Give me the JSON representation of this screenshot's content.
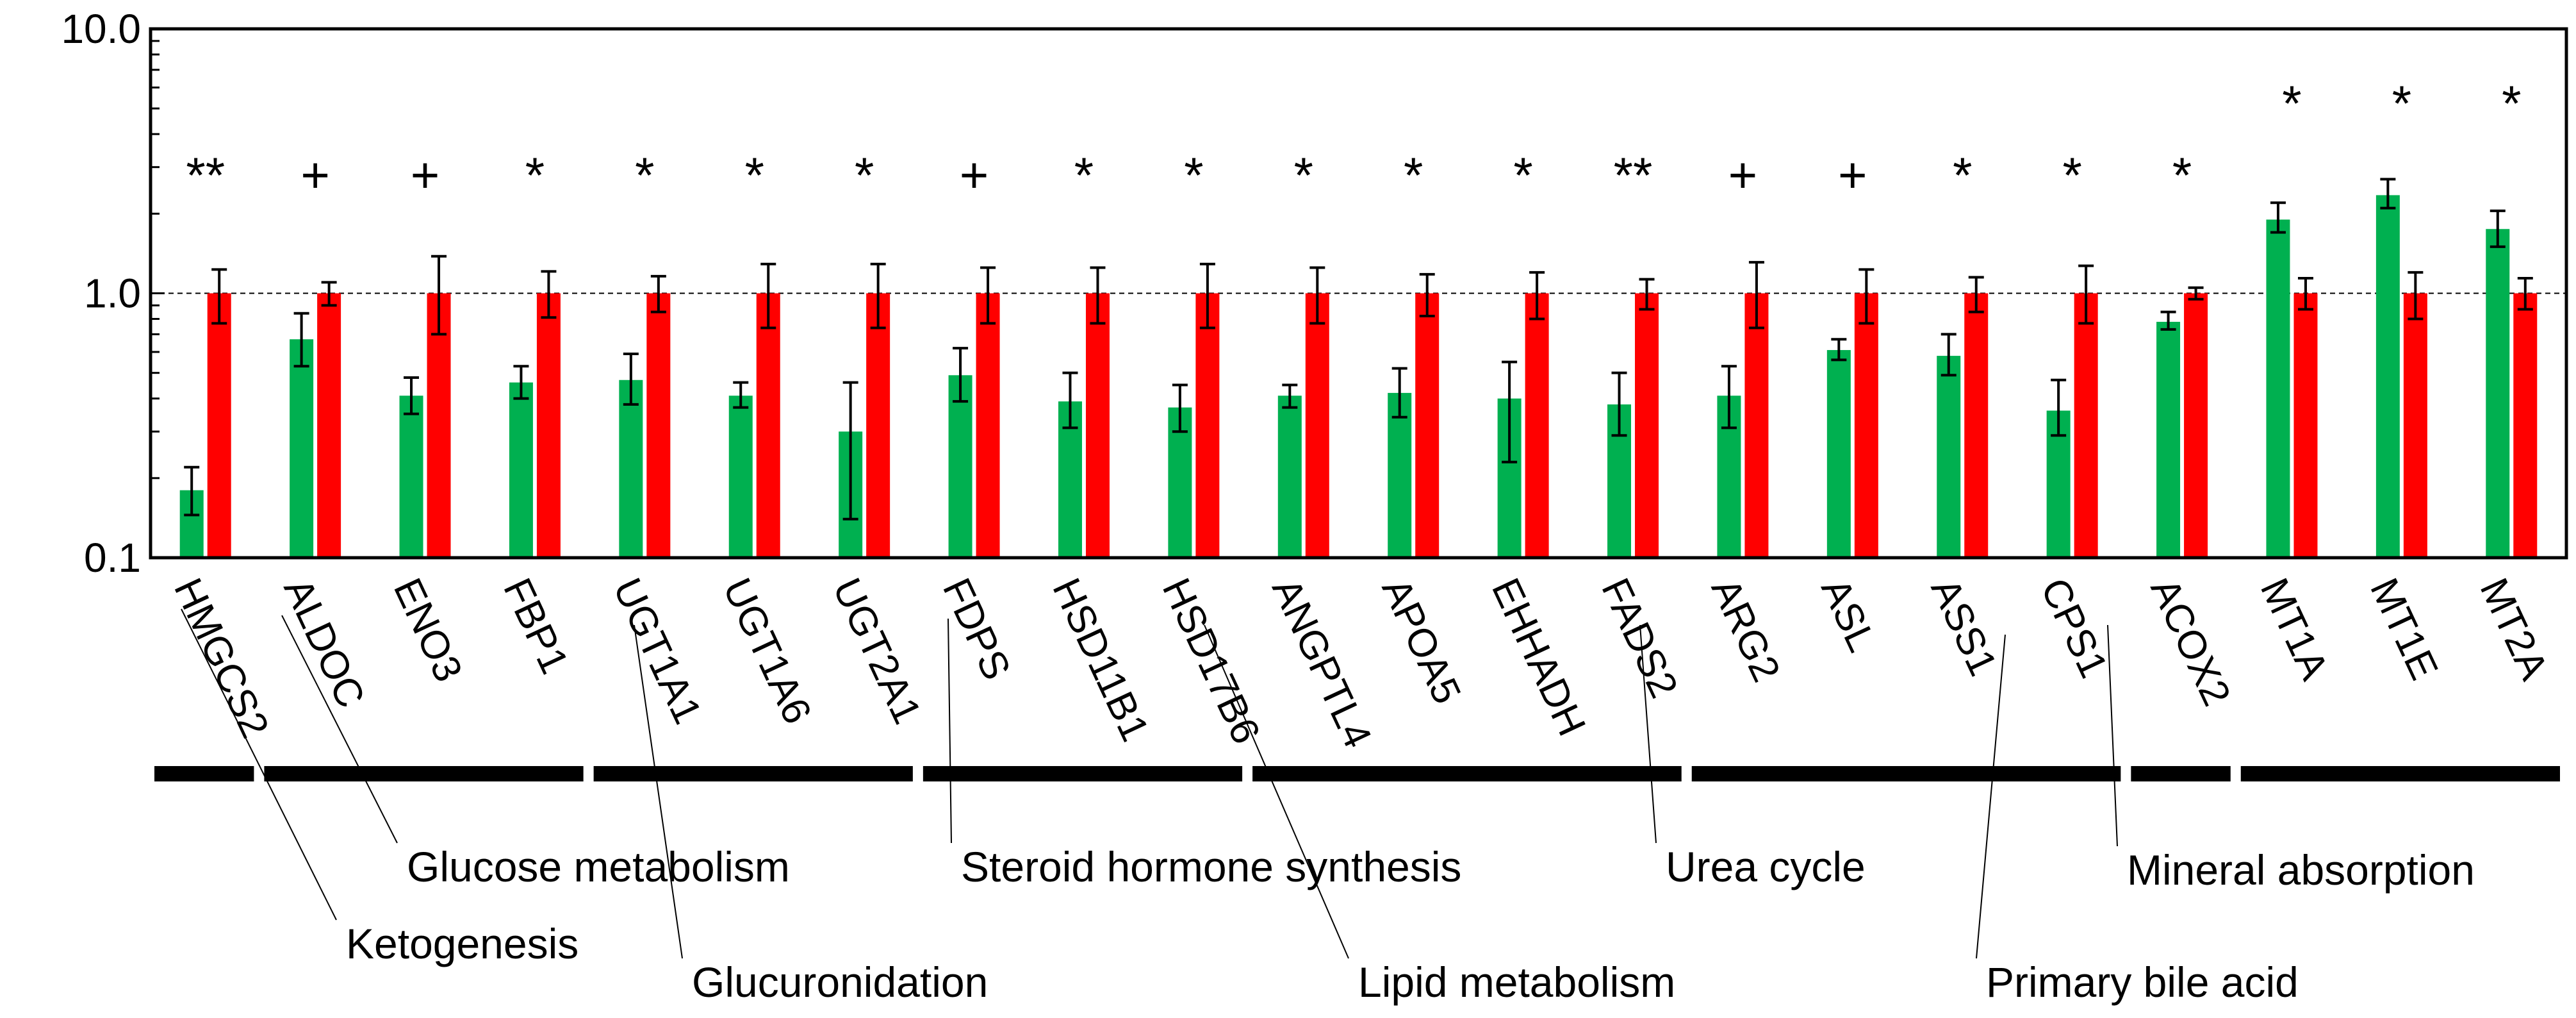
{
  "chart_data": {
    "type": "bar",
    "scale": "log",
    "ylim": [
      0.1,
      10.0
    ],
    "y_ticks": [
      {
        "value": 10.0,
        "label": "10.0"
      },
      {
        "value": 1.0,
        "label": "1.0"
      },
      {
        "value": 0.1,
        "label": "0.1"
      }
    ],
    "reference_line": 1.0,
    "categories": [
      "HMGCS2",
      "ALDOC",
      "ENO3",
      "FBP1",
      "UGT1A1",
      "UGT1A6",
      "UGT2A1",
      "FDPS",
      "HSD11B1",
      "HSD17B6",
      "ANGPTL4",
      "APOA5",
      "EHHADH",
      "FADS2",
      "ARG2",
      "ASL",
      "ASS1",
      "CPS1",
      "ACOX2",
      "MT1A",
      "MT1E",
      "MT2A"
    ],
    "series": [
      {
        "name": "green",
        "color": "#00b050",
        "values": [
          0.18,
          0.67,
          0.41,
          0.46,
          0.47,
          0.41,
          0.3,
          0.49,
          0.39,
          0.37,
          0.41,
          0.42,
          0.4,
          0.38,
          0.41,
          0.61,
          0.58,
          0.36,
          0.78,
          1.9,
          2.35,
          1.75
        ],
        "err_low": [
          0.145,
          0.53,
          0.35,
          0.4,
          0.38,
          0.37,
          0.14,
          0.39,
          0.31,
          0.3,
          0.37,
          0.34,
          0.23,
          0.29,
          0.31,
          0.56,
          0.49,
          0.29,
          0.73,
          1.7,
          2.1,
          1.5
        ],
        "err_high": [
          0.22,
          0.84,
          0.48,
          0.53,
          0.59,
          0.46,
          0.46,
          0.62,
          0.5,
          0.45,
          0.45,
          0.52,
          0.55,
          0.5,
          0.53,
          0.67,
          0.7,
          0.47,
          0.85,
          2.2,
          2.7,
          2.05
        ]
      },
      {
        "name": "red",
        "color": "#ff0000",
        "values": [
          1.0,
          1.0,
          1.0,
          1.0,
          1.0,
          1.0,
          1.0,
          1.0,
          1.0,
          1.0,
          1.0,
          1.0,
          1.0,
          1.0,
          1.0,
          1.0,
          1.0,
          1.0,
          1.0,
          1.0,
          1.0,
          1.0
        ],
        "err_low": [
          0.77,
          0.9,
          0.7,
          0.81,
          0.85,
          0.74,
          0.74,
          0.77,
          0.77,
          0.74,
          0.77,
          0.82,
          0.8,
          0.87,
          0.74,
          0.77,
          0.85,
          0.77,
          0.95,
          0.87,
          0.8,
          0.87
        ],
        "err_high": [
          1.23,
          1.1,
          1.38,
          1.21,
          1.16,
          1.29,
          1.29,
          1.25,
          1.25,
          1.29,
          1.25,
          1.18,
          1.2,
          1.13,
          1.31,
          1.23,
          1.15,
          1.27,
          1.05,
          1.14,
          1.2,
          1.14
        ]
      }
    ],
    "significance": [
      "**",
      "+",
      "+",
      "*",
      "*",
      "*",
      "*",
      "+",
      "*",
      "*",
      "*",
      "*",
      "*",
      "**",
      "+",
      "+",
      "*",
      "*",
      "*",
      "*",
      "*",
      "*"
    ],
    "groups": [
      {
        "label": "Ketogenesis",
        "start": 0,
        "end": 0
      },
      {
        "label": "Glucose metabolism",
        "start": 1,
        "end": 3
      },
      {
        "label": "Glucuronidation",
        "start": 4,
        "end": 6
      },
      {
        "label": "Steroid hormone synthesis",
        "start": 7,
        "end": 9
      },
      {
        "label": "Lipid metabolism",
        "start": 10,
        "end": 13
      },
      {
        "label": "Urea cycle",
        "start": 14,
        "end": 17
      },
      {
        "label": "Primary bile acid",
        "start": 18,
        "end": 18
      },
      {
        "label": "Mineral absorption",
        "start": 19,
        "end": 21
      }
    ]
  }
}
